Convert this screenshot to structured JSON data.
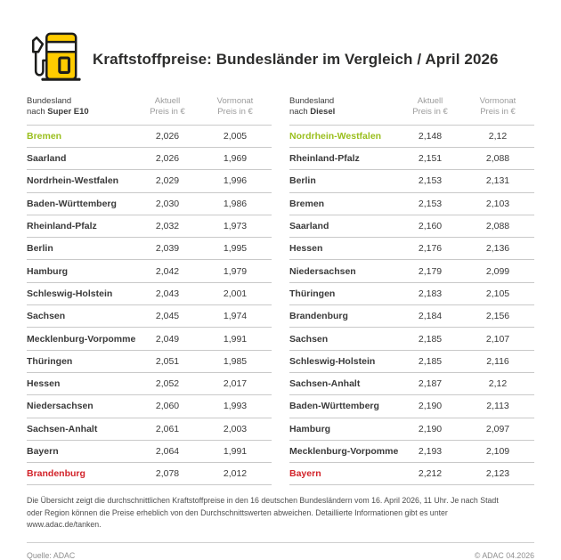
{
  "header": {
    "title": "Kraftstoffpreise: Bundesländer im Vergleich / April 2026",
    "icon": "fuel-pump-icon"
  },
  "colors": {
    "adac_yellow": "#FFCC00",
    "outline_black": "#1d1d1b",
    "best_green": "#9abf1d",
    "worst_red": "#d2232a",
    "separator_gray": "#c9c9c9",
    "header_gray": "#9c9c9c"
  },
  "chart_data": [
    {
      "type": "table",
      "fuel": "Super E10",
      "columns": {
        "c1_line1": "Bundesland",
        "c1_prefix": "nach ",
        "c1_bold": "Super E10",
        "c2_line1": "Aktuell",
        "c2_line2": "Preis in €",
        "c3_line1": "Vormonat",
        "c3_line2": "Preis in €"
      },
      "rows": [
        {
          "name": "Bremen",
          "aktuell": "2,026",
          "vormonat": "2,005",
          "highlight": "best"
        },
        {
          "name": "Saarland",
          "aktuell": "2,026",
          "vormonat": "1,969",
          "highlight": null
        },
        {
          "name": "Nordrhein-Westfalen",
          "aktuell": "2,029",
          "vormonat": "1,996",
          "highlight": null
        },
        {
          "name": "Baden-Württemberg",
          "aktuell": "2,030",
          "vormonat": "1,986",
          "highlight": null
        },
        {
          "name": "Rheinland-Pfalz",
          "aktuell": "2,032",
          "vormonat": "1,973",
          "highlight": null
        },
        {
          "name": "Berlin",
          "aktuell": "2,039",
          "vormonat": "1,995",
          "highlight": null
        },
        {
          "name": "Hamburg",
          "aktuell": "2,042",
          "vormonat": "1,979",
          "highlight": null
        },
        {
          "name": "Schleswig-Holstein",
          "aktuell": "2,043",
          "vormonat": "2,001",
          "highlight": null
        },
        {
          "name": "Sachsen",
          "aktuell": "2,045",
          "vormonat": "1,974",
          "highlight": null
        },
        {
          "name": "Mecklenburg-Vorpommern",
          "aktuell": "2,049",
          "vormonat": "1,991",
          "highlight": null
        },
        {
          "name": "Thüringen",
          "aktuell": "2,051",
          "vormonat": "1,985",
          "highlight": null
        },
        {
          "name": "Hessen",
          "aktuell": "2,052",
          "vormonat": "2,017",
          "highlight": null
        },
        {
          "name": "Niedersachsen",
          "aktuell": "2,060",
          "vormonat": "1,993",
          "highlight": null
        },
        {
          "name": "Sachsen-Anhalt",
          "aktuell": "2,061",
          "vormonat": "2,003",
          "highlight": null
        },
        {
          "name": "Bayern",
          "aktuell": "2,064",
          "vormonat": "1,991",
          "highlight": null
        },
        {
          "name": "Brandenburg",
          "aktuell": "2,078",
          "vormonat": "2,012",
          "highlight": "worst"
        }
      ]
    },
    {
      "type": "table",
      "fuel": "Diesel",
      "columns": {
        "c1_line1": "Bundesland",
        "c1_prefix": "nach ",
        "c1_bold": "Diesel",
        "c2_line1": "Aktuell",
        "c2_line2": "Preis in €",
        "c3_line1": "Vormonat",
        "c3_line2": "Preis in €"
      },
      "rows": [
        {
          "name": "Nordrhein-Westfalen",
          "aktuell": "2,148",
          "vormonat": "2,12",
          "highlight": "best"
        },
        {
          "name": "Rheinland-Pfalz",
          "aktuell": "2,151",
          "vormonat": "2,088",
          "highlight": null
        },
        {
          "name": "Berlin",
          "aktuell": "2,153",
          "vormonat": "2,131",
          "highlight": null
        },
        {
          "name": "Bremen",
          "aktuell": "2,153",
          "vormonat": "2,103",
          "highlight": null
        },
        {
          "name": "Saarland",
          "aktuell": "2,160",
          "vormonat": "2,088",
          "highlight": null
        },
        {
          "name": "Hessen",
          "aktuell": "2,176",
          "vormonat": "2,136",
          "highlight": null
        },
        {
          "name": "Niedersachsen",
          "aktuell": "2,179",
          "vormonat": "2,099",
          "highlight": null
        },
        {
          "name": "Thüringen",
          "aktuell": "2,183",
          "vormonat": "2,105",
          "highlight": null
        },
        {
          "name": "Brandenburg",
          "aktuell": "2,184",
          "vormonat": "2,156",
          "highlight": null
        },
        {
          "name": "Sachsen",
          "aktuell": "2,185",
          "vormonat": "2,107",
          "highlight": null
        },
        {
          "name": "Schleswig-Holstein",
          "aktuell": "2,185",
          "vormonat": "2,116",
          "highlight": null
        },
        {
          "name": "Sachsen-Anhalt",
          "aktuell": "2,187",
          "vormonat": "2,12",
          "highlight": null
        },
        {
          "name": "Baden-Württemberg",
          "aktuell": "2,190",
          "vormonat": "2,113",
          "highlight": null
        },
        {
          "name": "Hamburg",
          "aktuell": "2,190",
          "vormonat": "2,097",
          "highlight": null
        },
        {
          "name": "Mecklenburg-Vorpommern",
          "aktuell": "2,193",
          "vormonat": "2,109",
          "highlight": null
        },
        {
          "name": "Bayern",
          "aktuell": "2,212",
          "vormonat": "2,123",
          "highlight": "worst"
        }
      ]
    }
  ],
  "footer": {
    "note": "Die Übersicht zeigt die durchschnittlichen Kraftstoffpreise in den 16 deutschen Bundesländern vom 16. April 2026, 11 Uhr. Je nach Stadt oder Region können die Preise erheblich von den Durchschnittswerten abweichen. Detaillierte Informationen gibt es unter www.adac.de/tanken.",
    "source": "Quelle: ADAC",
    "copyright": "© ADAC 04.2026"
  }
}
